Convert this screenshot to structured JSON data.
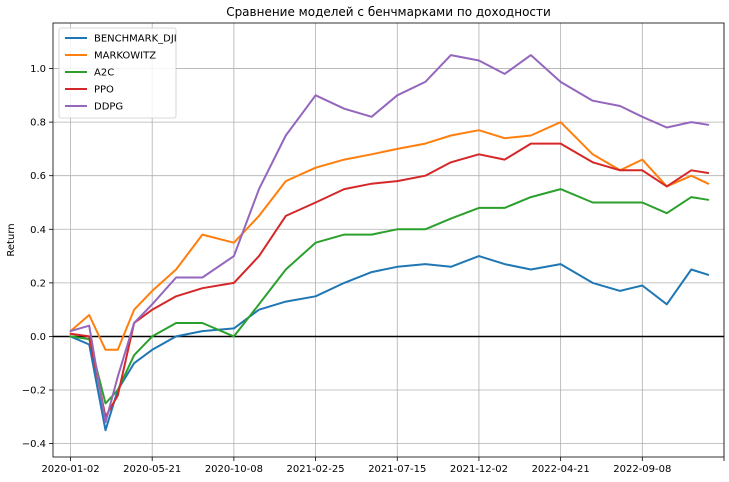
{
  "chart_data": {
    "type": "line",
    "title": "Сравнение моделей с бенчмарками по доходности",
    "xlabel": "",
    "ylabel": "Return",
    "ylim": [
      -0.45,
      1.17
    ],
    "grid": true,
    "legend_position": "top-left",
    "zero_line": 0.0,
    "x_ticks": [
      {
        "date": "2020-01-02",
        "label": "2020-01-02"
      },
      {
        "date": "2020-05-21",
        "label": "2020-05-21"
      },
      {
        "date": "2020-10-08",
        "label": "2020-10-08"
      },
      {
        "date": "2021-02-25",
        "label": "2021-02-25"
      },
      {
        "date": "2021-07-15",
        "label": "2021-07-15"
      },
      {
        "date": "2021-12-02",
        "label": "2021-12-02"
      },
      {
        "date": "2022-04-21",
        "label": "2022-04-21"
      },
      {
        "date": "2022-09-08",
        "label": "2022-09-08"
      },
      {
        "date": "2023-01-26",
        "label": ""
      }
    ],
    "y_ticks": [
      -0.4,
      -0.2,
      0.0,
      0.2,
      0.4,
      0.6,
      0.8,
      1.0
    ],
    "y_tick_labels": [
      "−0.4",
      "−0.2",
      "0.0",
      "0.2",
      "0.4",
      "0.6",
      "0.8",
      "1.0"
    ],
    "x_domain": [
      "2019-12-03",
      "2023-01-26"
    ],
    "x": [
      "2020-01-02",
      "2020-02-03",
      "2020-03-02",
      "2020-03-23",
      "2020-04-20",
      "2020-05-21",
      "2020-07-01",
      "2020-08-15",
      "2020-10-08",
      "2020-11-20",
      "2021-01-05",
      "2021-02-25",
      "2021-04-15",
      "2021-06-01",
      "2021-07-15",
      "2021-09-01",
      "2021-10-15",
      "2021-12-02",
      "2022-01-15",
      "2022-03-01",
      "2022-04-21",
      "2022-06-15",
      "2022-08-01",
      "2022-09-08",
      "2022-10-20",
      "2022-12-01",
      "2022-12-30"
    ],
    "series": [
      {
        "name": "BENCHMARK_DJI",
        "color": "#1f77b4",
        "values": [
          0.0,
          -0.03,
          -0.35,
          -0.2,
          -0.1,
          -0.05,
          0.0,
          0.02,
          0.03,
          0.1,
          0.13,
          0.15,
          0.2,
          0.24,
          0.26,
          0.27,
          0.26,
          0.3,
          0.27,
          0.25,
          0.27,
          0.2,
          0.17,
          0.19,
          0.12,
          0.25,
          0.23
        ]
      },
      {
        "name": "MARKOWITZ",
        "color": "#ff7f0e",
        "values": [
          0.02,
          0.08,
          -0.05,
          -0.05,
          0.1,
          0.17,
          0.25,
          0.38,
          0.35,
          0.45,
          0.58,
          0.63,
          0.66,
          0.68,
          0.7,
          0.72,
          0.75,
          0.77,
          0.74,
          0.75,
          0.8,
          0.68,
          0.62,
          0.66,
          0.56,
          0.6,
          0.57
        ]
      },
      {
        "name": "A2C",
        "color": "#2ca02c",
        "values": [
          0.0,
          -0.01,
          -0.25,
          -0.2,
          -0.07,
          0.0,
          0.05,
          0.05,
          0.0,
          0.12,
          0.25,
          0.35,
          0.38,
          0.38,
          0.4,
          0.4,
          0.44,
          0.48,
          0.48,
          0.52,
          0.55,
          0.5,
          0.5,
          0.5,
          0.46,
          0.52,
          0.51
        ]
      },
      {
        "name": "PPO",
        "color": "#d62728",
        "values": [
          0.01,
          0.0,
          -0.3,
          -0.22,
          0.05,
          0.1,
          0.15,
          0.18,
          0.2,
          0.3,
          0.45,
          0.5,
          0.55,
          0.57,
          0.58,
          0.6,
          0.65,
          0.68,
          0.66,
          0.72,
          0.72,
          0.65,
          0.62,
          0.62,
          0.56,
          0.62,
          0.61
        ]
      },
      {
        "name": "DDPG",
        "color": "#9467bd",
        "values": [
          0.02,
          0.04,
          -0.32,
          -0.15,
          0.05,
          0.12,
          0.22,
          0.22,
          0.3,
          0.55,
          0.75,
          0.9,
          0.85,
          0.82,
          0.9,
          0.95,
          1.05,
          1.03,
          0.98,
          1.05,
          0.95,
          0.88,
          0.86,
          0.82,
          0.78,
          0.8,
          0.79
        ]
      }
    ]
  }
}
